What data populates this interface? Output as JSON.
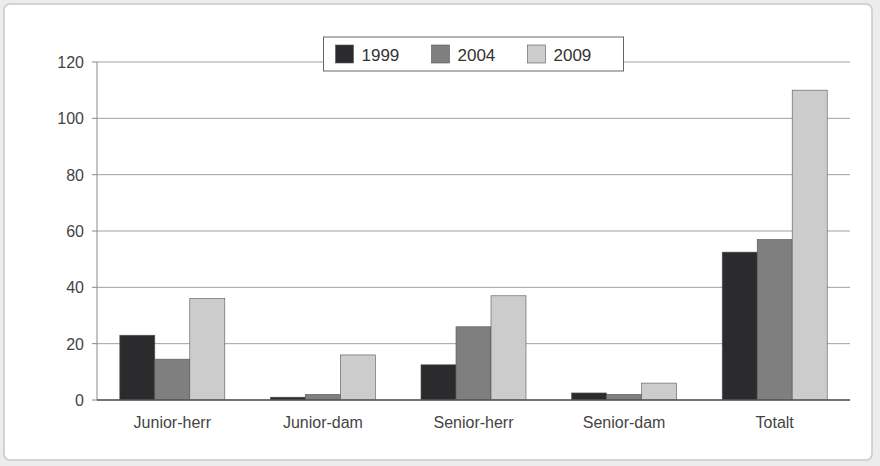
{
  "chart_data": {
    "type": "bar",
    "categories": [
      "Junior-herr",
      "Junior-dam",
      "Senior-herr",
      "Senior-dam",
      "Totalt"
    ],
    "series": [
      {
        "name": "1999",
        "color": "#2b2b2e",
        "values": [
          23,
          1,
          12.5,
          2.5,
          52.5
        ]
      },
      {
        "name": "2004",
        "color": "#7f7f7f",
        "values": [
          14.5,
          2,
          26,
          2,
          57
        ]
      },
      {
        "name": "2009",
        "color": "#cccccc",
        "values": [
          36,
          16,
          37,
          6,
          110
        ]
      }
    ],
    "ylim": [
      0,
      120
    ],
    "yticks": [
      0,
      20,
      40,
      60,
      80,
      100,
      120
    ],
    "grid": true,
    "legend": "top"
  }
}
